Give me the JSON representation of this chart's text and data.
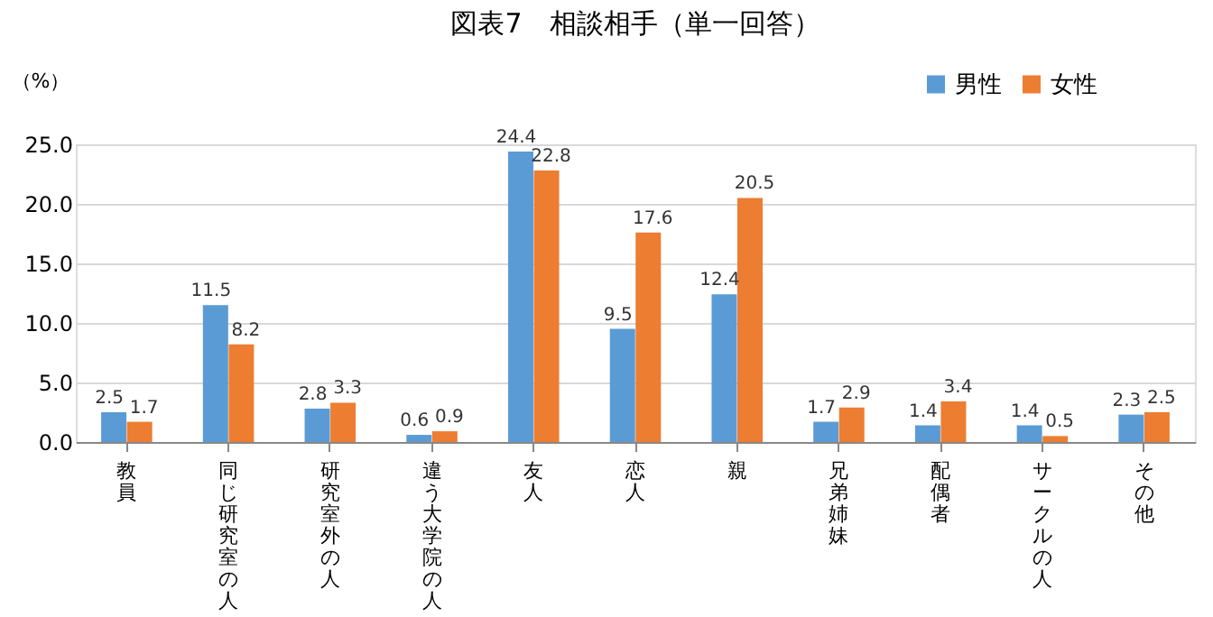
{
  "chart_data": {
    "type": "bar",
    "title": "図表7　相談相手（単一回答）",
    "ylabel": "（%）",
    "categories": [
      "教員",
      "同じ研究室の人",
      "研究室外の人",
      "違う大学院の人",
      "友人",
      "恋人",
      "親",
      "兄弟姉妹",
      "配偶者",
      "サークルの人",
      "その他"
    ],
    "series": [
      {
        "name": "男性",
        "color": "#5b9bd5",
        "values": [
          2.5,
          11.5,
          2.8,
          0.6,
          24.4,
          9.5,
          12.4,
          1.7,
          1.4,
          1.4,
          2.3
        ]
      },
      {
        "name": "女性",
        "color": "#ed7d31",
        "values": [
          1.7,
          8.2,
          3.3,
          0.9,
          22.8,
          17.6,
          20.5,
          2.9,
          3.4,
          0.5,
          2.5
        ]
      }
    ],
    "ylim": [
      0,
      25
    ],
    "yticks": [
      {
        "value": 0,
        "label": "0.0"
      },
      {
        "value": 5,
        "label": "5.0"
      },
      {
        "value": 10,
        "label": "10.0"
      },
      {
        "value": 15,
        "label": "15.0"
      },
      {
        "value": 20,
        "label": "20.0"
      },
      {
        "value": 25,
        "label": "25.0"
      }
    ],
    "grid": "y",
    "legend": "top right",
    "data_labels": true
  }
}
